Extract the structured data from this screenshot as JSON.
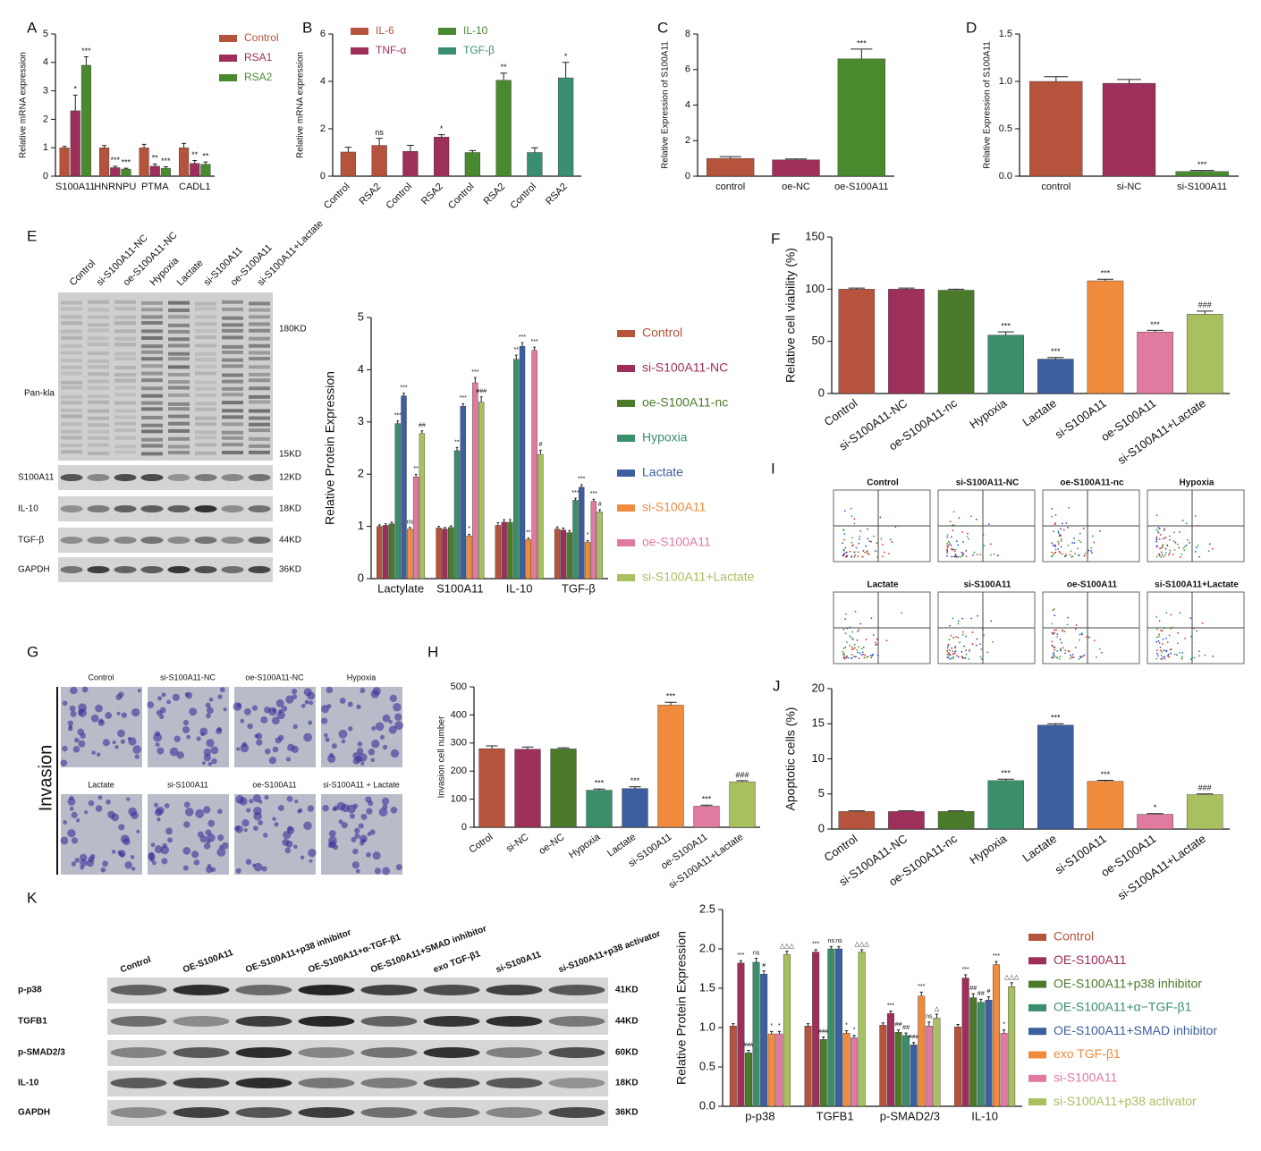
{
  "chart_data": [
    {
      "type": "bar",
      "panel": "A",
      "ylabel": "Relative mRNA expression",
      "categories": [
        "S100A11",
        "HNRNPU",
        "PTMA",
        "CADL1"
      ],
      "series": [
        {
          "name": "Control",
          "color": "#b5533c",
          "values": [
            1,
            1,
            1,
            1
          ],
          "errors": [
            0.05,
            0.08,
            0.12,
            0.15
          ],
          "annotations": [
            null,
            null,
            null,
            null
          ]
        },
        {
          "name": "RSA1",
          "color": "#9e2f5a",
          "values": [
            2.3,
            0.3,
            0.35,
            0.45
          ],
          "errors": [
            0.55,
            0.05,
            0.08,
            0.1
          ],
          "annotations": [
            "*",
            "***",
            "**",
            "**"
          ]
        },
        {
          "name": "RSA2",
          "color": "#4a8a2e",
          "values": [
            3.9,
            0.25,
            0.28,
            0.42
          ],
          "errors": [
            0.3,
            0.03,
            0.05,
            0.08
          ],
          "annotations": [
            "***",
            "***",
            "***",
            "**"
          ]
        }
      ],
      "ylim": [
        0,
        5
      ],
      "yticks": [
        0,
        1,
        2,
        3,
        4,
        5
      ],
      "legend": "upper right"
    },
    {
      "type": "bar",
      "panel": "B",
      "ylabel": "Relative mRNA expression",
      "barmode": "overlay",
      "categories": [
        "Control",
        "RSA2",
        "Control",
        "RSA2",
        "Control",
        "RSA2",
        "Control",
        "RSA2"
      ],
      "series": [
        {
          "name": "IL-6",
          "color": "#b5533c",
          "values": [
            1.02,
            1.3,
            null,
            null,
            null,
            null,
            null,
            null
          ],
          "errors": [
            0.2,
            0.3,
            null,
            null,
            null,
            null,
            null,
            null
          ],
          "annotations": [
            null,
            "ns",
            null,
            null,
            null,
            null,
            null,
            null
          ]
        },
        {
          "name": "TNF-α",
          "color": "#9e2f5a",
          "values": [
            null,
            null,
            1.05,
            1.65,
            null,
            null,
            null,
            null
          ],
          "errors": [
            null,
            null,
            0.25,
            0.1,
            null,
            null,
            null,
            null
          ],
          "annotations": [
            null,
            null,
            null,
            "*",
            null,
            null,
            null,
            null
          ]
        },
        {
          "name": "IL-10",
          "color": "#4a8a2e",
          "values": [
            null,
            null,
            null,
            null,
            1,
            4.05,
            null,
            null
          ],
          "errors": [
            null,
            null,
            null,
            null,
            0.08,
            0.3,
            null,
            null
          ],
          "annotations": [
            null,
            null,
            null,
            null,
            null,
            "**",
            null,
            null
          ]
        },
        {
          "name": "TGF-β",
          "color": "#3a8f72",
          "values": [
            null,
            null,
            null,
            null,
            null,
            null,
            1,
            4.15
          ],
          "errors": [
            null,
            null,
            null,
            null,
            null,
            null,
            0.2,
            0.65
          ],
          "annotations": [
            null,
            null,
            null,
            null,
            null,
            null,
            null,
            "*"
          ]
        }
      ],
      "ylim": [
        0,
        6
      ],
      "yticks": [
        0,
        2,
        4,
        6
      ],
      "legend": "top"
    },
    {
      "type": "bar",
      "panel": "C",
      "ylabel": "Relative Expression of S100A11",
      "categories": [
        "control",
        "oe-NC",
        "oe-S100A11"
      ],
      "values": [
        1,
        0.92,
        6.6
      ],
      "errors": [
        0.1,
        0.05,
        0.55
      ],
      "annotations": [
        null,
        null,
        "***"
      ],
      "colors": [
        "#b5533c",
        "#9e2f5a",
        "#4a8a2e"
      ],
      "ylim": [
        0,
        8
      ],
      "yticks": [
        0,
        2,
        4,
        6,
        8
      ]
    },
    {
      "type": "bar",
      "panel": "D",
      "ylabel": "Relative Expression of S100A11",
      "categories": [
        "control",
        "si-NC",
        "si-S100A11"
      ],
      "values": [
        1,
        0.98,
        0.05
      ],
      "errors": [
        0.05,
        0.04,
        0.01
      ],
      "annotations": [
        null,
        null,
        "***"
      ],
      "colors": [
        "#b5533c",
        "#9e2f5a",
        "#4a8a2e"
      ],
      "ylim": [
        0,
        1.5
      ],
      "yticks": [
        {
          "value": 0,
          "label": "0.0"
        },
        0.5,
        {
          "value": 1,
          "label": "1.0"
        },
        1.5
      ]
    },
    {
      "type": "bar",
      "ylabel": "Relative Protein Expression",
      "categories": [
        "Lactylate",
        "S100A11",
        "IL-10",
        "TGF-β"
      ],
      "series": [
        {
          "name": "Control",
          "color": "#b5533c",
          "values": [
            1,
            0.97,
            1.02,
            0.95
          ],
          "errors": [
            0.03,
            0.03,
            0.05,
            0.04
          ],
          "annotations": [
            null,
            null,
            null,
            null
          ]
        },
        {
          "name": "si-S100A11-NC",
          "color": "#9e2f5a",
          "values": [
            1.02,
            0.95,
            1.08,
            0.93
          ],
          "errors": [
            0.03,
            0.03,
            0.05,
            0.04
          ],
          "annotations": [
            null,
            null,
            null,
            null
          ]
        },
        {
          "name": "oe-S100A11-nc",
          "color": "#4a7a2a",
          "values": [
            1.05,
            0.98,
            1.08,
            0.88
          ],
          "errors": [
            0.03,
            0.03,
            0.05,
            0.04
          ],
          "annotations": [
            null,
            null,
            null,
            null
          ]
        },
        {
          "name": "Hypoxia",
          "color": "#3a8f6a",
          "values": [
            2.97,
            2.45,
            4.2,
            1.5
          ],
          "errors": [
            0.05,
            0.06,
            0.08,
            0.04
          ],
          "annotations": [
            "***",
            "**",
            "**",
            "***"
          ]
        },
        {
          "name": "Lactate",
          "color": "#3c5fa0",
          "values": [
            3.5,
            3.3,
            4.45,
            1.75
          ],
          "errors": [
            0.05,
            0.05,
            0.07,
            0.05
          ],
          "annotations": [
            "***",
            "***",
            "***",
            "***"
          ]
        },
        {
          "name": "si-S100A11",
          "color": "#f08a3c",
          "values": [
            0.95,
            0.82,
            0.75,
            0.7
          ],
          "errors": [
            0.03,
            0.03,
            0.03,
            0.03
          ],
          "annotations": [
            "ns",
            "*",
            "**",
            "*"
          ]
        },
        {
          "name": "oe-S100A11",
          "color": "#e07aa0",
          "values": [
            1.95,
            3.75,
            4.37,
            1.48
          ],
          "errors": [
            0.05,
            0.1,
            0.06,
            0.04
          ],
          "annotations": [
            "**",
            "***",
            "***",
            "***"
          ]
        },
        {
          "name": "si-S100A11+Lactate",
          "color": "#a8c060",
          "values": [
            2.78,
            3.38,
            2.38,
            1.28
          ],
          "errors": [
            0.05,
            0.1,
            0.08,
            0.04
          ],
          "annotations": [
            "##",
            "###",
            "#",
            "#"
          ]
        }
      ],
      "ylim": [
        0,
        5
      ],
      "yticks": [
        0,
        1,
        2,
        3,
        4,
        5
      ],
      "legend": "right"
    },
    {
      "type": "bar",
      "panel": "F",
      "ylabel": "Relative cell viability (%)",
      "categories": [
        "Control",
        "si-S100A11-NC",
        "oe-S100A11-nc",
        "Hypoxia",
        "Lactate",
        "si-S100A11",
        "oe-S100A11",
        "si-S100A11+Lactate"
      ],
      "values": [
        100,
        100,
        99,
        56,
        33,
        108,
        59,
        76
      ],
      "errors": [
        1,
        1,
        1,
        3,
        1.5,
        1.5,
        1.5,
        3
      ],
      "annotations": [
        null,
        null,
        null,
        "***",
        "***",
        "***",
        "***",
        "###"
      ],
      "colors": [
        "#b5533c",
        "#9e2f5a",
        "#4a7a2a",
        "#3a8f6a",
        "#3c5fa0",
        "#f08a3c",
        "#e07aa0",
        "#a8c060"
      ],
      "ylim": [
        0,
        150
      ],
      "yticks": [
        0,
        50,
        100,
        150
      ]
    },
    {
      "type": "bar",
      "panel": "H",
      "ylabel": "Invasion cell number",
      "categories": [
        "Cotrol",
        "si-NC",
        "oe-NC",
        "Hypoxia",
        "Lactate",
        "si-S100A11",
        "oe-S100A11",
        "si-S100A11+Lactate"
      ],
      "values": [
        280,
        278,
        279,
        132,
        138,
        435,
        75,
        162
      ],
      "errors": [
        10,
        8,
        4,
        4,
        6,
        10,
        4,
        4
      ],
      "annotations": [
        null,
        null,
        null,
        "***",
        "***",
        "***",
        "***",
        "###"
      ],
      "colors": [
        "#b5533c",
        "#9e2f5a",
        "#4a7a2a",
        "#3a8f6a",
        "#3c5fa0",
        "#f08a3c",
        "#e07aa0",
        "#a8c060"
      ],
      "ylim": [
        0,
        500
      ],
      "yticks": [
        0,
        100,
        200,
        300,
        400,
        500
      ]
    },
    {
      "type": "bar",
      "panel": "J",
      "ylabel": "Apoptotic cells (%)",
      "categories": [
        "Control",
        "si-S100A11-NC",
        "oe-S100A11-nc",
        "Hypoxia",
        "Lactate",
        "si-S100A11",
        "oe-S100A11",
        "si-S100A11+Lactate"
      ],
      "values": [
        2.5,
        2.5,
        2.5,
        6.9,
        14.8,
        6.8,
        2.1,
        4.9
      ],
      "errors": [
        0.1,
        0.1,
        0.1,
        0.2,
        0.2,
        0.15,
        0.1,
        0.1
      ],
      "annotations": [
        null,
        null,
        null,
        "***",
        "***",
        "***",
        "*",
        "###"
      ],
      "colors": [
        "#b5533c",
        "#9e2f5a",
        "#4a7a2a",
        "#3a8f6a",
        "#3c5fa0",
        "#f08a3c",
        "#e07aa0",
        "#a8c060"
      ],
      "ylim": [
        0,
        20
      ],
      "yticks": [
        0,
        5,
        10,
        15,
        20
      ]
    },
    {
      "type": "bar",
      "ylabel": "Relative Protein Expression",
      "categories": [
        "p-p38",
        "TGFB1",
        "p-SMAD2/3",
        "IL-10"
      ],
      "series": [
        {
          "name": "Control",
          "color": "#b5533c",
          "values": [
            1.02,
            1.02,
            1.03,
            1.01
          ],
          "errors": [
            0.03,
            0.03,
            0.03,
            0.03
          ],
          "annotations": [
            null,
            null,
            null,
            null
          ]
        },
        {
          "name": "OE-S100A11",
          "color": "#9e2f5a",
          "values": [
            1.82,
            1.96,
            1.18,
            1.63
          ],
          "errors": [
            0.03,
            0.03,
            0.03,
            0.04
          ],
          "annotations": [
            "***",
            "***",
            "***",
            "***"
          ]
        },
        {
          "name": "OE-S100A11+p38 inhibitor",
          "color": "#4a7a2a",
          "values": [
            0.68,
            0.85,
            0.94,
            1.38
          ],
          "errors": [
            0.03,
            0.03,
            0.03,
            0.05
          ],
          "annotations": [
            "###",
            "###",
            "##",
            "##"
          ]
        },
        {
          "name": "OE-S100A11+α−TGF-β1",
          "color": "#3a8f6a",
          "values": [
            1.83,
            2.0,
            0.9,
            1.32
          ],
          "errors": [
            0.05,
            0.03,
            0.03,
            0.04
          ],
          "annotations": [
            "ns",
            "ns",
            "##",
            "##"
          ]
        },
        {
          "name": "OE-S100A11+SMAD inhibitor",
          "color": "#3c5fa0",
          "values": [
            1.68,
            2.0,
            0.78,
            1.35
          ],
          "errors": [
            0.04,
            0.03,
            0.03,
            0.04
          ],
          "annotations": [
            "#",
            "ns",
            "###",
            "#"
          ]
        },
        {
          "name": "exo TGF-β1",
          "color": "#f08a3c",
          "values": [
            0.92,
            0.93,
            1.4,
            1.8
          ],
          "errors": [
            0.03,
            0.03,
            0.05,
            0.04
          ],
          "annotations": [
            "*",
            "*",
            "***",
            "***"
          ]
        },
        {
          "name": "si-S100A11",
          "color": "#e07aa0",
          "values": [
            0.92,
            0.87,
            1.02,
            0.93
          ],
          "errors": [
            0.03,
            0.03,
            0.05,
            0.04
          ],
          "annotations": [
            "*",
            "*",
            "ns",
            "*"
          ]
        },
        {
          "name": "si-S100A11+p38 activator",
          "color": "#a8c060",
          "values": [
            1.93,
            1.96,
            1.12,
            1.52
          ],
          "errors": [
            0.04,
            0.03,
            0.05,
            0.05
          ],
          "annotations": [
            "△△△",
            "△△△",
            "△",
            "△△△"
          ]
        }
      ],
      "ylim": [
        0,
        2.5
      ],
      "yticks": [
        {
          "value": 0,
          "label": "0.0"
        },
        0.5,
        {
          "value": 1,
          "label": "1.0"
        },
        1.5,
        {
          "value": 2,
          "label": "2.0"
        },
        2.5
      ],
      "legend": "right"
    }
  ],
  "blot_e": {
    "panel": "E",
    "lanes": [
      "Control",
      "si-S100A11-NC",
      "oe-S100A11-NC",
      "Hypoxia",
      "Lactate",
      "si-S100A11",
      "oe-S100A11",
      "si-S100A11+Lactate"
    ],
    "pan_kla": {
      "name": "Pan-kla",
      "kd_top": "180KD",
      "kd_bottom": "15KD"
    },
    "rows": [
      {
        "name": "S100A11",
        "kd": "12KD"
      },
      {
        "name": "IL-10",
        "kd": "18KD"
      },
      {
        "name": "TGF-β",
        "kd": "44KD"
      },
      {
        "name": "GAPDH",
        "kd": "36KD"
      }
    ]
  },
  "invasion_g": {
    "panel": "G",
    "label": "Invasion",
    "images": [
      "Control",
      "si-S100A11-NC",
      "oe-S100A11-NC",
      "Hypoxia",
      "Lactate",
      "si-S100A11",
      "oe-S100A11",
      "si-S100A11 + Lactate"
    ]
  },
  "flow_i": {
    "panel": "I",
    "images": [
      "Control",
      "si-S100A11-NC",
      "oe-S100A11-nc",
      "Hypoxia",
      "Lactate",
      "si-S100A11",
      "oe-S100A11",
      "si-S100A11+Lactate"
    ]
  },
  "blot_k": {
    "panel": "K",
    "lanes": [
      "Control",
      "OE-S100A11",
      "OE-S100A11+p38 inhibitor",
      "OE-S100A11+α-TGF-β1",
      "OE-S100A11+SMAD inhibitor",
      "exo TGF-β1",
      "si-S100A11",
      "si-S100A11+p38 activator"
    ],
    "rows": [
      {
        "name": "p-p38",
        "kd": "41KD"
      },
      {
        "name": "TGFB1",
        "kd": "44KD"
      },
      {
        "name": "p-SMAD2/3",
        "kd": "60KD"
      },
      {
        "name": "IL-10",
        "kd": "18KD"
      },
      {
        "name": "GAPDH",
        "kd": "36KD"
      }
    ]
  }
}
